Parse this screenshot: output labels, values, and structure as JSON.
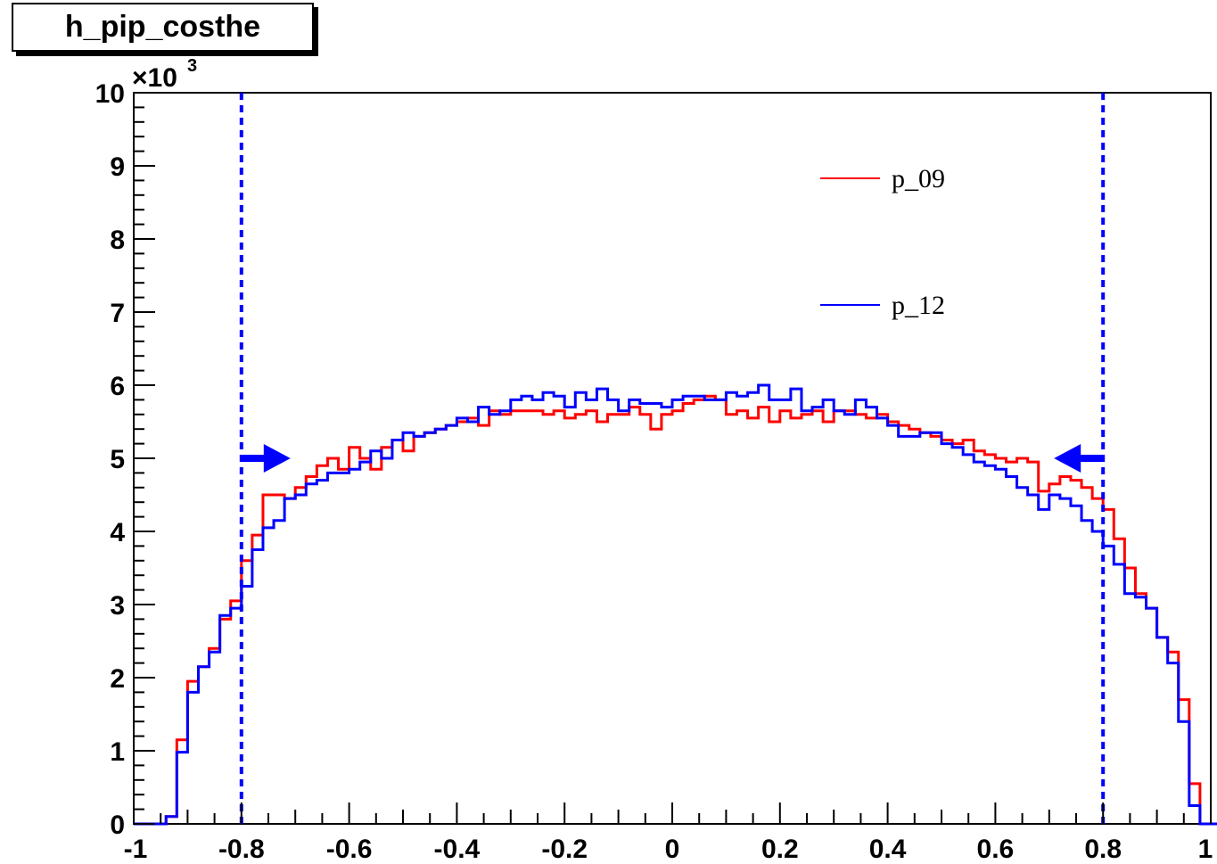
{
  "title": "h_pip_costhe",
  "chart_data": {
    "type": "line",
    "step": true,
    "xlim": [
      -1,
      1
    ],
    "ylim": [
      0,
      10000
    ],
    "y_multiplier_label": "×10",
    "y_multiplier_exponent": "3",
    "x_ticks": [
      -1,
      -0.8,
      -0.6,
      -0.4,
      -0.2,
      0,
      0.2,
      0.4,
      0.6,
      0.8,
      1
    ],
    "x_tick_labels": [
      "-1",
      "-0.8",
      "-0.6",
      "-0.4",
      "-0.2",
      "0",
      "0.2",
      "0.4",
      "0.6",
      "0.8",
      "1"
    ],
    "y_ticks": [
      0,
      1000,
      2000,
      3000,
      4000,
      5000,
      6000,
      7000,
      8000,
      9000,
      10000
    ],
    "y_tick_labels": [
      "0",
      "1",
      "2",
      "3",
      "4",
      "5",
      "6",
      "7",
      "8",
      "9",
      "10"
    ],
    "bin_edges_start": -1,
    "bin_width": 0.02,
    "series": [
      {
        "name": "p_09",
        "color": "#ff0000",
        "values": [
          0,
          0,
          0,
          100,
          1150,
          1950,
          2150,
          2400,
          2800,
          3050,
          3600,
          3950,
          4500,
          4500,
          4450,
          4600,
          4750,
          4900,
          5000,
          4850,
          5150,
          5000,
          4850,
          5150,
          5250,
          5100,
          5300,
          5350,
          5400,
          5450,
          5500,
          5550,
          5450,
          5650,
          5600,
          5650,
          5650,
          5650,
          5600,
          5650,
          5550,
          5600,
          5650,
          5500,
          5600,
          5600,
          5700,
          5600,
          5400,
          5600,
          5650,
          5750,
          5800,
          5850,
          5800,
          5600,
          5650,
          5550,
          5700,
          5500,
          5650,
          5550,
          5600,
          5650,
          5500,
          5650,
          5650,
          5600,
          5550,
          5600,
          5500,
          5450,
          5400,
          5350,
          5300,
          5250,
          5200,
          5250,
          5100,
          5050,
          5000,
          4950,
          5000,
          4950,
          4550,
          4650,
          4750,
          4700,
          4600,
          4450,
          4300,
          3900,
          3500,
          3150,
          2950,
          2550,
          2350,
          1700,
          550,
          0,
          0
        ]
      },
      {
        "name": "p_12",
        "color": "#0000ff",
        "values": [
          0,
          0,
          0,
          100,
          980,
          1800,
          2150,
          2350,
          2850,
          2950,
          3250,
          3750,
          4050,
          4150,
          4450,
          4500,
          4650,
          4700,
          4800,
          4800,
          4850,
          4950,
          5100,
          5000,
          5250,
          5350,
          5300,
          5350,
          5400,
          5450,
          5550,
          5500,
          5700,
          5600,
          5650,
          5800,
          5850,
          5800,
          5900,
          5850,
          5700,
          5900,
          5800,
          5950,
          5800,
          5650,
          5800,
          5750,
          5750,
          5700,
          5800,
          5850,
          5850,
          5800,
          5800,
          5900,
          5850,
          5900,
          6000,
          5800,
          5800,
          5950,
          5650,
          5700,
          5800,
          5650,
          5600,
          5800,
          5700,
          5550,
          5450,
          5300,
          5300,
          5350,
          5350,
          5200,
          5150,
          5050,
          4950,
          4900,
          4850,
          4750,
          4600,
          4500,
          4300,
          4500,
          4450,
          4350,
          4150,
          4000,
          3800,
          3550,
          3150,
          3100,
          2950,
          2550,
          2200,
          1400,
          250,
          0,
          0
        ]
      }
    ],
    "cut_lines": [
      -0.8,
      0.8
    ],
    "arrow_level": 5000
  }
}
